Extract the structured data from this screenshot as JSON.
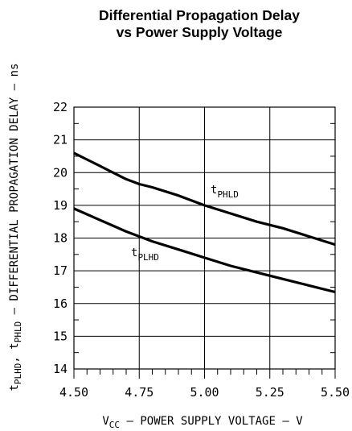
{
  "chart_data": {
    "type": "line",
    "title_line1": "Differential Propagation Delay",
    "title_line2": "vs Power Supply Voltage",
    "xlabel": {
      "main": "V",
      "sub": "CC",
      "rest": " – POWER SUPPLY VOLTAGE – V"
    },
    "ylabel": {
      "t1": "t",
      "s1": "PLHD",
      "mid": ", t",
      "s2": "PHLD",
      "rest": " – DIFFERENTIAL PROPAGATION DELAY – ns"
    },
    "xlim": [
      4.5,
      5.5
    ],
    "ylim": [
      14,
      22
    ],
    "x_ticks": [
      "4.50",
      "4.75",
      "5.00",
      "5.25",
      "5.50"
    ],
    "y_ticks": [
      "14",
      "15",
      "16",
      "17",
      "18",
      "19",
      "20",
      "21",
      "22"
    ],
    "grid": true,
    "series": [
      {
        "name_main": "t",
        "name_sub": "PHLD",
        "x": [
          4.5,
          4.55,
          4.6,
          4.65,
          4.7,
          4.75,
          4.8,
          4.9,
          5.0,
          5.1,
          5.2,
          5.3,
          5.4,
          5.5
        ],
        "y": [
          20.6,
          20.4,
          20.2,
          20.0,
          19.8,
          19.65,
          19.55,
          19.3,
          19.0,
          18.75,
          18.5,
          18.3,
          18.05,
          17.8
        ]
      },
      {
        "name_main": "t",
        "name_sub": "PLHD",
        "x": [
          4.5,
          4.6,
          4.7,
          4.75,
          4.8,
          4.9,
          5.0,
          5.1,
          5.2,
          5.3,
          5.4,
          5.5
        ],
        "y": [
          18.9,
          18.55,
          18.2,
          18.05,
          17.9,
          17.65,
          17.4,
          17.15,
          16.95,
          16.75,
          16.55,
          16.35
        ]
      }
    ]
  }
}
